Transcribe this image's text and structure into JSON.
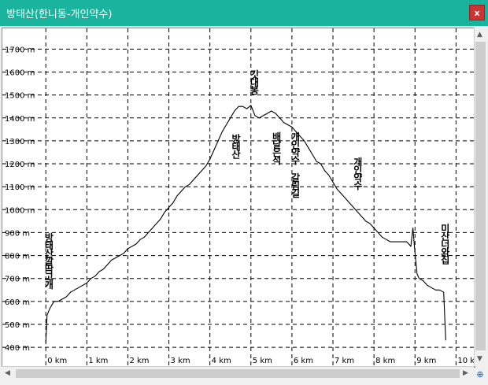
{
  "window": {
    "title": "방태산(한니동-개인약수)",
    "close_label": "x"
  },
  "icons": {
    "close": "close-icon",
    "scroll_up": "arrow-up-icon",
    "scroll_down": "arrow-down-icon",
    "scroll_left": "arrow-left-icon",
    "scroll_right": "arrow-right-icon",
    "corner": "globe-icon"
  },
  "colors": {
    "titlebar": "#1ab49e",
    "close_button": "#cc3333",
    "profile_line": "#000000",
    "grid": "#000000"
  },
  "chart_data": {
    "type": "line",
    "title": "",
    "xlabel": "",
    "ylabel": "",
    "xlim": [
      -0.1,
      10.3
    ],
    "ylim": [
      390,
      1770
    ],
    "grid": true,
    "grid_style": "dashed",
    "x_ticks": [
      {
        "value": 0,
        "label": "0 km"
      },
      {
        "value": 1,
        "label": "1 km"
      },
      {
        "value": 2,
        "label": "2 km"
      },
      {
        "value": 3,
        "label": "3 km"
      },
      {
        "value": 4,
        "label": "4 km"
      },
      {
        "value": 5,
        "label": "5 km"
      },
      {
        "value": 6,
        "label": "6 km"
      },
      {
        "value": 7,
        "label": "7 km"
      },
      {
        "value": 8,
        "label": "8 km"
      },
      {
        "value": 9,
        "label": "9 km"
      },
      {
        "value": 10,
        "label": "10 km"
      }
    ],
    "y_ticks": [
      {
        "value": 400,
        "label": "400 m"
      },
      {
        "value": 500,
        "label": "500 m"
      },
      {
        "value": 600,
        "label": "600 m"
      },
      {
        "value": 700,
        "label": "700 m"
      },
      {
        "value": 800,
        "label": "800 m"
      },
      {
        "value": 900,
        "label": "900 m"
      },
      {
        "value": 1000,
        "label": "1000 m"
      },
      {
        "value": 1100,
        "label": "1100 m"
      },
      {
        "value": 1200,
        "label": "1200 m"
      },
      {
        "value": 1300,
        "label": "1300 m"
      },
      {
        "value": 1400,
        "label": "1400 m"
      },
      {
        "value": 1500,
        "label": "1500 m"
      },
      {
        "value": 1600,
        "label": "1600 m"
      },
      {
        "value": 1700,
        "label": "1700 m"
      }
    ],
    "series": [
      {
        "x": [
          0.0,
          0.03,
          0.1,
          0.2,
          0.3,
          0.4,
          0.5,
          0.6,
          0.7,
          0.8,
          0.9,
          1.0,
          1.1,
          1.2,
          1.3,
          1.4,
          1.5,
          1.6,
          1.7,
          1.8,
          1.9,
          2.0,
          2.1,
          2.2,
          2.3,
          2.4,
          2.5,
          2.6,
          2.7,
          2.8,
          2.9,
          3.0,
          3.1,
          3.2,
          3.3,
          3.4,
          3.5,
          3.6,
          3.7,
          3.8,
          3.9,
          4.0,
          4.1,
          4.2,
          4.3,
          4.4,
          4.5,
          4.6,
          4.7,
          4.8,
          4.9,
          5.0,
          5.1,
          5.2,
          5.3,
          5.4,
          5.5,
          5.6,
          5.7,
          5.8,
          5.9,
          6.0,
          6.1,
          6.2,
          6.3,
          6.4,
          6.5,
          6.6,
          6.7,
          6.8,
          6.9,
          7.0,
          7.1,
          7.2,
          7.3,
          7.4,
          7.5,
          7.6,
          7.7,
          7.8,
          7.9,
          8.0,
          8.1,
          8.2,
          8.3,
          8.4,
          8.5,
          8.6,
          8.7,
          8.8,
          8.9,
          8.95,
          9.0,
          9.05,
          9.1,
          9.2,
          9.3,
          9.4,
          9.5,
          9.6,
          9.7,
          9.75
        ],
        "values": [
          420,
          540,
          570,
          600,
          600,
          610,
          620,
          640,
          650,
          660,
          670,
          680,
          700,
          710,
          730,
          740,
          760,
          780,
          790,
          800,
          810,
          830,
          840,
          850,
          870,
          880,
          900,
          920,
          940,
          960,
          990,
          1010,
          1030,
          1060,
          1080,
          1100,
          1110,
          1130,
          1150,
          1170,
          1190,
          1220,
          1260,
          1300,
          1340,
          1370,
          1400,
          1430,
          1450,
          1450,
          1440,
          1455,
          1410,
          1400,
          1410,
          1420,
          1430,
          1420,
          1400,
          1380,
          1370,
          1360,
          1340,
          1320,
          1300,
          1270,
          1240,
          1210,
          1200,
          1170,
          1150,
          1120,
          1090,
          1070,
          1050,
          1030,
          1010,
          990,
          970,
          950,
          940,
          920,
          900,
          880,
          870,
          860,
          860,
          860,
          860,
          860,
          840,
          920,
          810,
          720,
          700,
          690,
          670,
          660,
          650,
          650,
          640,
          430
        ]
      }
    ],
    "annotations": [
      {
        "text": "방태산깔딱고개",
        "x": 0.07,
        "elev": 900
      },
      {
        "text": "방태산",
        "x": 4.63,
        "elev": 1330
      },
      {
        "text": "깃대봉",
        "x": 5.08,
        "elev": 1610
      },
      {
        "text": "배달은석",
        "x": 5.62,
        "elev": 1340
      },
      {
        "text": "개인약수 갈림길",
        "x": 6.08,
        "elev": 1340
      },
      {
        "text": "개인약수",
        "x": 7.6,
        "elev": 1230
      },
      {
        "text": "미산너와집",
        "x": 9.73,
        "elev": 940
      }
    ]
  }
}
